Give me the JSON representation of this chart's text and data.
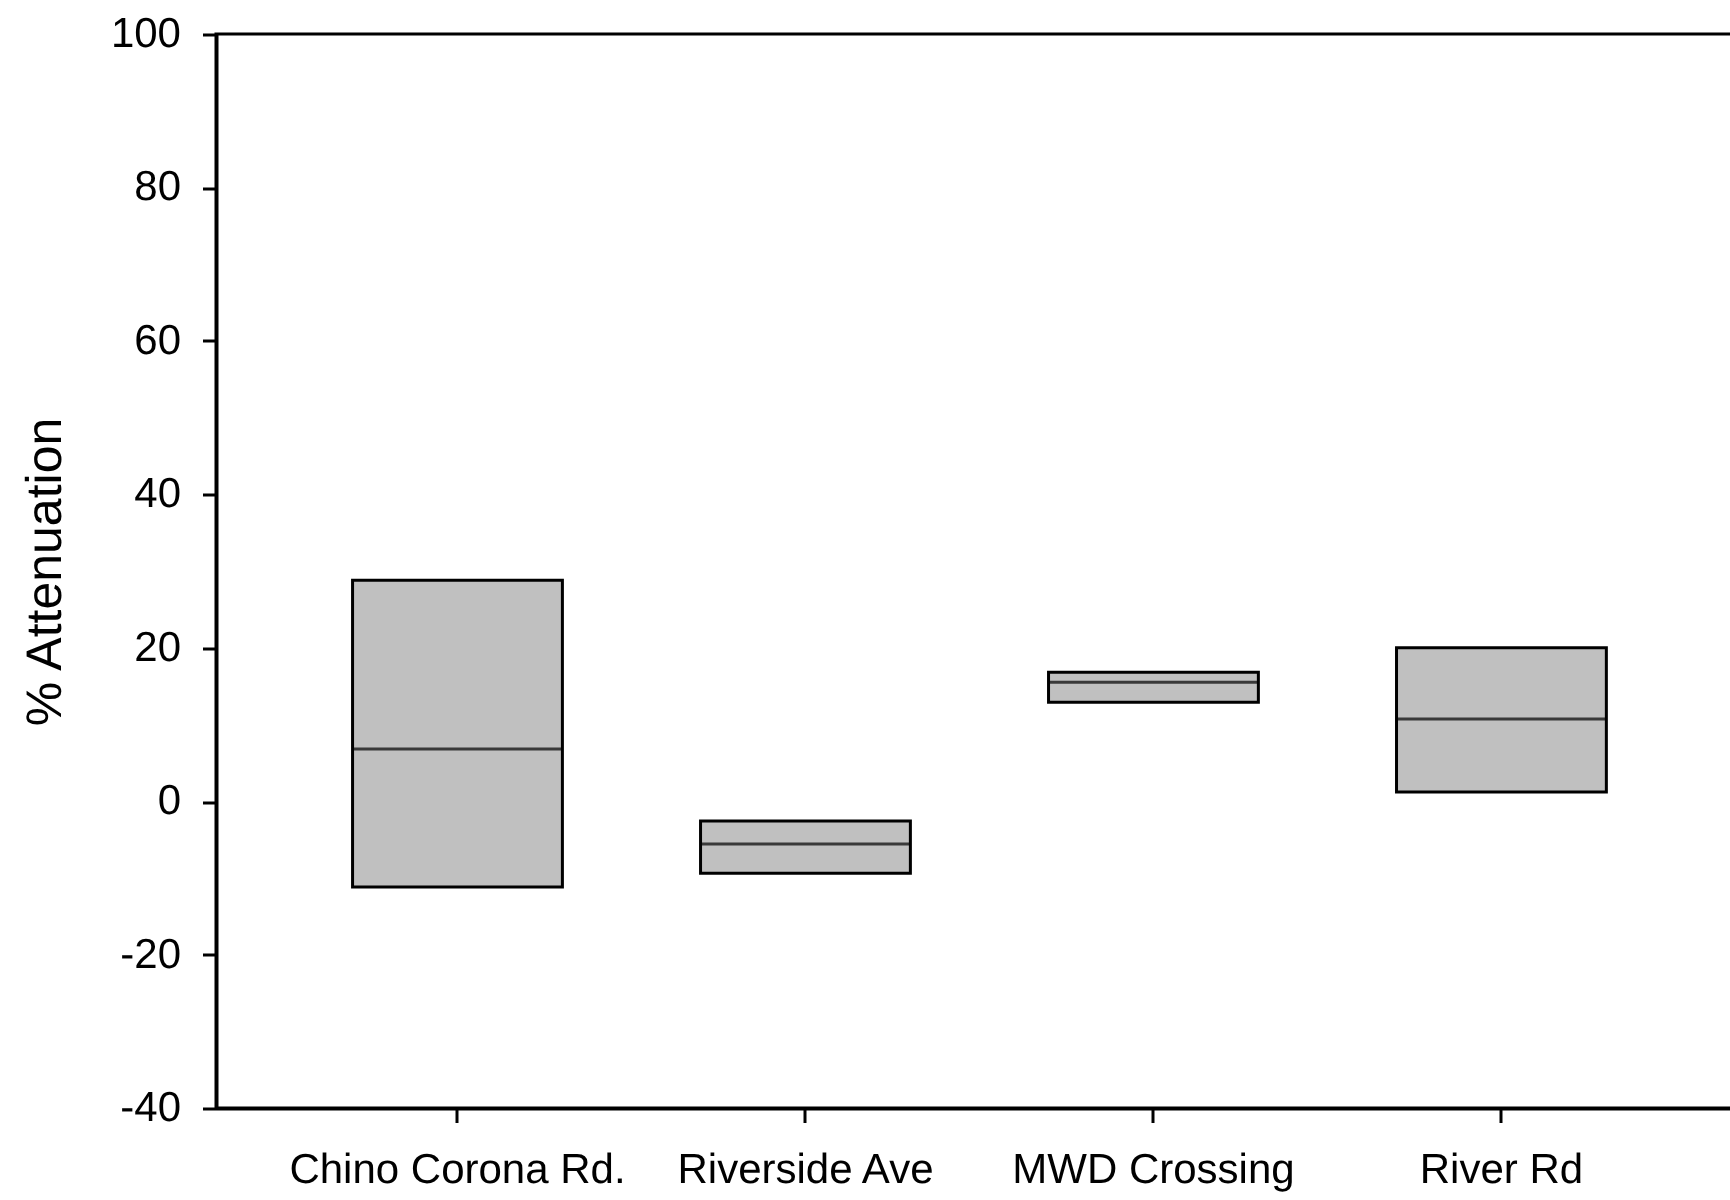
{
  "chart_data": {
    "type": "box",
    "ylabel": "% Attenuation",
    "categories": [
      "Chino Corona Rd.",
      "Riverside Ave",
      "MWD Crossing",
      "River Rd"
    ],
    "boxes": [
      {
        "q1": -11.2,
        "median": 6.8,
        "q3": 28.8
      },
      {
        "q1": -9.4,
        "median": -5.6,
        "q3": -2.6
      },
      {
        "q1": 12.9,
        "median": 15.5,
        "q3": 16.8
      },
      {
        "q1": 1.2,
        "median": 10.7,
        "q3": 20.0
      }
    ],
    "color": "#c0c0c0",
    "ylim": [
      -40,
      100
    ],
    "yticks": [
      -40,
      -20,
      0,
      20,
      40,
      60,
      80,
      100
    ]
  }
}
